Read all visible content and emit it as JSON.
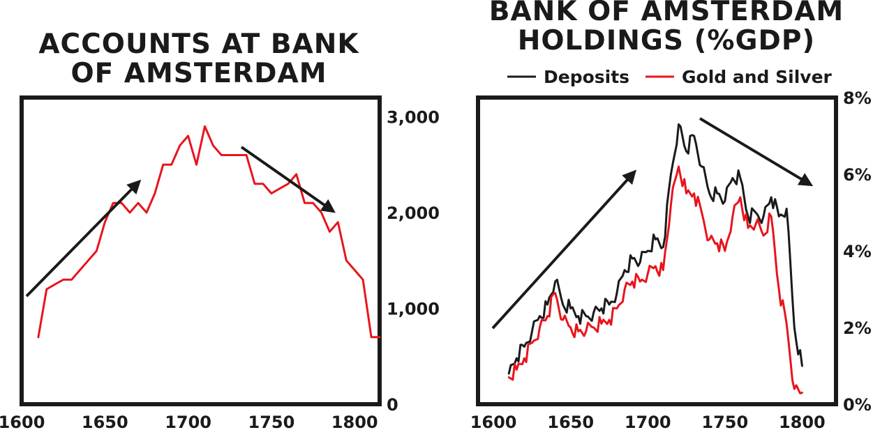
{
  "charts": {
    "left_title": "ACCOUNTS AT BANK OF AMSTERDAM",
    "right_title": "BANK OF AMSTERDAM HOLDINGS (%GDP)"
  },
  "colors": {
    "red": "#e8141c",
    "black": "#1a1a1a"
  },
  "chart_data": [
    {
      "type": "line",
      "title": "ACCOUNTS AT BANK OF AMSTERDAM",
      "xlim": [
        1600,
        1815
      ],
      "ylim": [
        0,
        3200
      ],
      "x_ticks": [
        "1600",
        "1650",
        "1700",
        "1750",
        "1800"
      ],
      "y_ticks": [
        "0",
        "1,000",
        "2,000",
        "3,000"
      ],
      "y_tick_values": [
        0,
        1000,
        2000,
        3000
      ],
      "x_tick_values": [
        1600,
        1650,
        1700,
        1750,
        1800
      ],
      "series": [
        {
          "color": "#e8141c",
          "x": [
            1610,
            1615,
            1620,
            1625,
            1630,
            1635,
            1640,
            1645,
            1650,
            1655,
            1660,
            1665,
            1670,
            1675,
            1680,
            1685,
            1690,
            1695,
            1700,
            1705,
            1710,
            1715,
            1720,
            1725,
            1730,
            1735,
            1740,
            1745,
            1750,
            1755,
            1760,
            1765,
            1770,
            1775,
            1780,
            1785,
            1790,
            1795,
            1800,
            1805,
            1810,
            1815
          ],
          "values": [
            700,
            1200,
            1250,
            1300,
            1300,
            1400,
            1500,
            1600,
            1900,
            2100,
            2100,
            2000,
            2100,
            2000,
            2200,
            2500,
            2500,
            2700,
            2800,
            2500,
            2900,
            2700,
            2600,
            2600,
            2600,
            2600,
            2300,
            2300,
            2200,
            2250,
            2300,
            2400,
            2100,
            2100,
            2000,
            1800,
            1900,
            1500,
            1400,
            1300,
            700,
            700
          ]
        }
      ],
      "annotations": [
        "upward arrow",
        "downward arrow"
      ]
    },
    {
      "type": "line",
      "title": "BANK OF AMSTERDAM HOLDINGS (%GDP)",
      "xlim": [
        1590,
        1822
      ],
      "ylim": [
        0,
        8
      ],
      "x_ticks": [
        "1600",
        "1650",
        "1700",
        "1750",
        "1800"
      ],
      "x_tick_values": [
        1600,
        1650,
        1700,
        1750,
        1800
      ],
      "y_ticks": [
        "0%",
        "2%",
        "4%",
        "6%",
        "8%"
      ],
      "y_tick_values": [
        0,
        2,
        4,
        6,
        8
      ],
      "legend_position": "top",
      "series": [
        {
          "name": "Deposits",
          "color": "#1a1a1a",
          "x": [
            1610,
            1615,
            1620,
            1625,
            1630,
            1635,
            1640,
            1645,
            1650,
            1655,
            1660,
            1665,
            1670,
            1675,
            1680,
            1685,
            1690,
            1695,
            1700,
            1705,
            1710,
            1715,
            1720,
            1725,
            1730,
            1735,
            1740,
            1745,
            1750,
            1755,
            1760,
            1765,
            1770,
            1775,
            1780,
            1785,
            1790,
            1795,
            1800
          ],
          "values": [
            0.8,
            1.2,
            1.5,
            1.9,
            2.3,
            2.6,
            3.2,
            2.6,
            2.5,
            2.3,
            2.3,
            2.4,
            2.5,
            2.6,
            2.9,
            3.5,
            3.8,
            3.7,
            4.0,
            4.3,
            4.1,
            6.0,
            7.3,
            6.6,
            7.0,
            6.2,
            5.5,
            5.5,
            5.3,
            5.9,
            5.9,
            4.9,
            5.0,
            4.9,
            5.4,
            4.9,
            5.1,
            2.0,
            1.0
          ]
        },
        {
          "name": "Gold and Silver",
          "color": "#e8141c",
          "x": [
            1610,
            1615,
            1620,
            1625,
            1630,
            1635,
            1640,
            1645,
            1650,
            1655,
            1660,
            1665,
            1670,
            1675,
            1680,
            1685,
            1690,
            1695,
            1700,
            1705,
            1710,
            1715,
            1720,
            1725,
            1730,
            1735,
            1740,
            1745,
            1750,
            1755,
            1760,
            1765,
            1770,
            1775,
            1780,
            1785,
            1790,
            1795,
            1800
          ],
          "values": [
            0.7,
            0.9,
            1.2,
            1.6,
            2.0,
            2.3,
            2.9,
            2.2,
            2.0,
            1.9,
            1.9,
            2.0,
            2.1,
            2.2,
            2.5,
            3.0,
            3.2,
            3.2,
            3.4,
            3.6,
            3.5,
            5.2,
            6.2,
            5.5,
            5.5,
            5.0,
            4.3,
            4.2,
            4.0,
            4.9,
            5.4,
            4.6,
            4.7,
            4.4,
            4.9,
            3.0,
            2.1,
            0.4,
            0.3
          ]
        }
      ],
      "annotations": [
        "upward arrow",
        "downward arrow"
      ]
    }
  ]
}
